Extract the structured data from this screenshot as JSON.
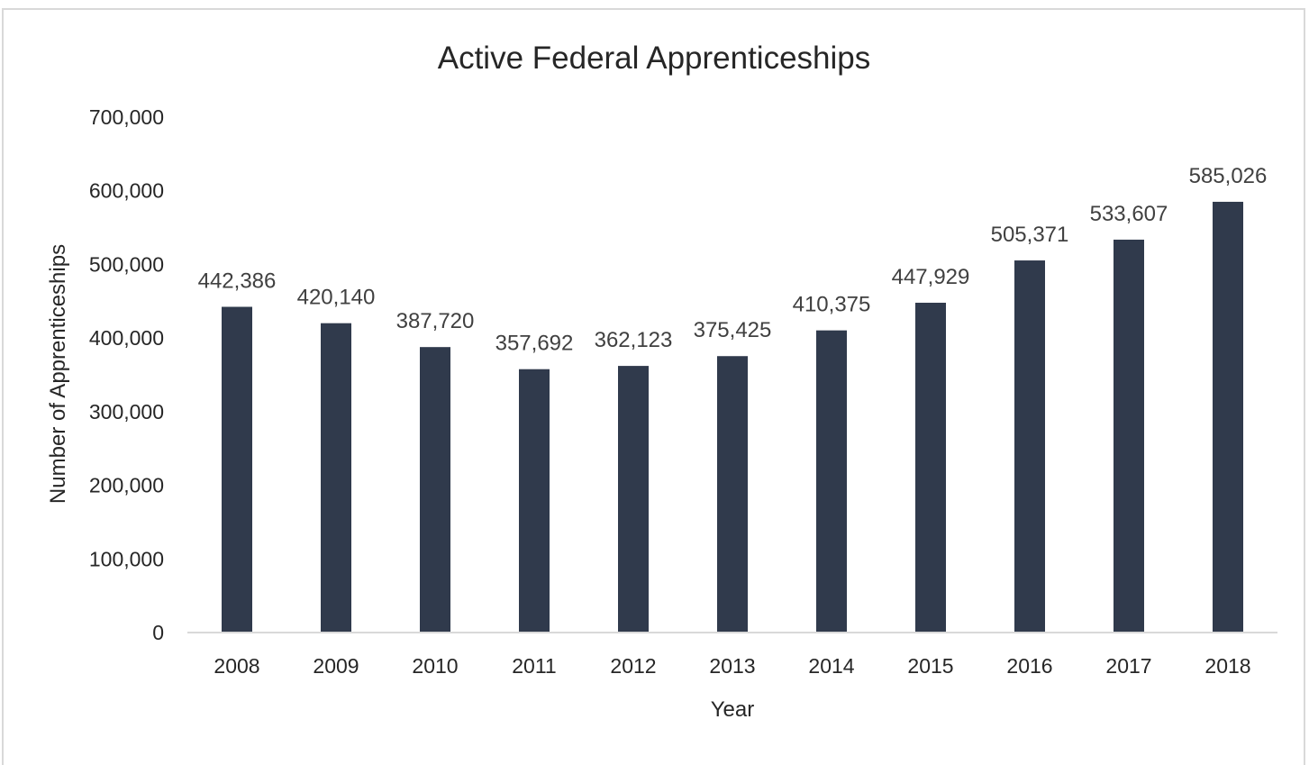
{
  "chart_data": {
    "type": "bar",
    "title": "Active Federal Apprenticeships",
    "xlabel": "Year",
    "ylabel": "Number of Apprenticeships",
    "categories": [
      "2008",
      "2009",
      "2010",
      "2011",
      "2012",
      "2013",
      "2014",
      "2015",
      "2016",
      "2017",
      "2018"
    ],
    "values": [
      442386,
      420140,
      387720,
      357692,
      362123,
      375425,
      410375,
      447929,
      505371,
      533607,
      585026
    ],
    "data_labels": [
      "442,386",
      "420,140",
      "387,720",
      "357,692",
      "362,123",
      "375,425",
      "410,375",
      "447,929",
      "505,371",
      "533,607",
      "585,026"
    ],
    "ylim": [
      0,
      700000
    ],
    "yticks": [
      0,
      100000,
      200000,
      300000,
      400000,
      500000,
      600000,
      700000
    ],
    "ytick_labels": [
      "0",
      "100,000",
      "200,000",
      "300,000",
      "400,000",
      "500,000",
      "600,000",
      "700,000"
    ],
    "grid": false,
    "legend": "none",
    "bar_color": "#303a4c"
  }
}
